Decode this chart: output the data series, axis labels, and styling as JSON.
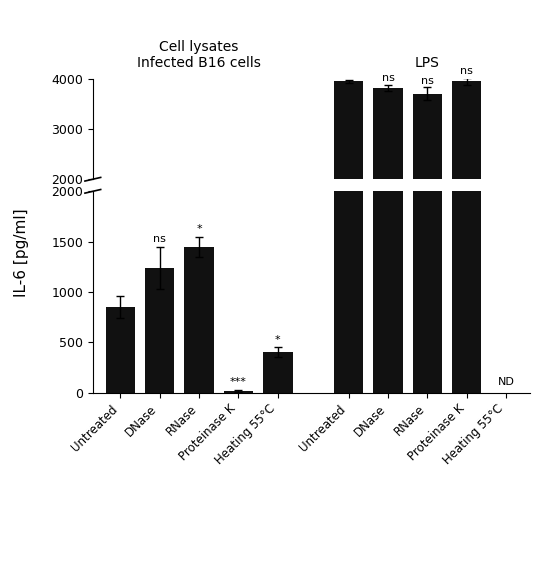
{
  "group1_labels": [
    "Untreated",
    "DNase",
    "RNase",
    "Proteinase K",
    "Heating 55°C"
  ],
  "group2_labels": [
    "Untreated",
    "DNase",
    "RNase",
    "Proteinase K",
    "Heating 55°C"
  ],
  "group1_values": [
    850,
    1240,
    1450,
    20,
    400
  ],
  "group1_errors": [
    110,
    210,
    100,
    10,
    50
  ],
  "group2_values": [
    3950,
    3820,
    3700,
    3950,
    0
  ],
  "group2_errors": [
    30,
    60,
    130,
    70,
    0
  ],
  "group1_sig": [
    "",
    "ns",
    "*",
    "***",
    "*"
  ],
  "group2_sig": [
    "",
    "ns",
    "ns",
    "ns",
    "ND"
  ],
  "bar_color": "#111111",
  "group1_title": "Cell lysates\nInfected B16 cells",
  "group2_title": "LPS",
  "ylabel": "IL-6 [pg/ml]",
  "background_color": "#ffffff",
  "group1_x": [
    0,
    1,
    2,
    3,
    4
  ],
  "group2_x": [
    5.8,
    6.8,
    7.8,
    8.8,
    9.8
  ],
  "bar_width": 0.75,
  "xlim": [
    -0.7,
    10.4
  ],
  "lower_ylim": [
    0,
    2000
  ],
  "upper_ylim": [
    0,
    2000
  ],
  "lower_yticks": [
    0,
    500,
    1000,
    1500,
    2000
  ],
  "lower_yticklabels": [
    "0",
    "500",
    "1000",
    "1500",
    "2000"
  ],
  "upper_yticks": [
    0,
    1000,
    2000
  ],
  "upper_yticklabels": [
    "2000",
    "3000",
    "4000"
  ]
}
